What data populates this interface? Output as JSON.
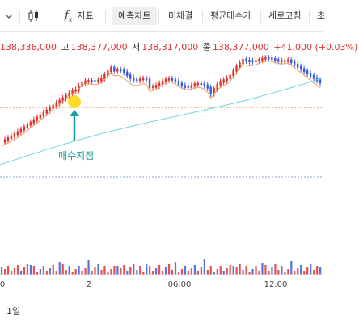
{
  "toolbar": {
    "chevron_icon": "chevron-down",
    "candle_icon": "candlestick-icon",
    "indicator_icon": "function-icon",
    "indicator_label": "지표",
    "buttons": [
      {
        "label": "예측차트",
        "active": true
      },
      {
        "label": "미체결",
        "active": false
      },
      {
        "label": "평균매수가",
        "active": false
      },
      {
        "label": "세로고침",
        "active": false
      },
      {
        "label": "초",
        "active": false
      }
    ]
  },
  "ohlc": {
    "open_value": "138,336,000",
    "high_label": "고",
    "high_value": "138,377,000",
    "low_label": "저",
    "low_value": "138,317,000",
    "close_label": "종",
    "close_value": "138,377,000",
    "change": "+41,000 (+0.03%)"
  },
  "annotation": {
    "text": "매수지점"
  },
  "x_axis": {
    "labels": [
      "0",
      "2",
      "06:00",
      "12:00"
    ]
  },
  "footer": {
    "period": "1일"
  },
  "colors": {
    "up": "#e03131",
    "down": "#3b5bdb",
    "ma_short": "#f0a060",
    "ma_long": "#6fd6e0",
    "price_line": "#e8753a",
    "annotation": "#1a9c9c",
    "highlight": "#ffd400"
  }
}
